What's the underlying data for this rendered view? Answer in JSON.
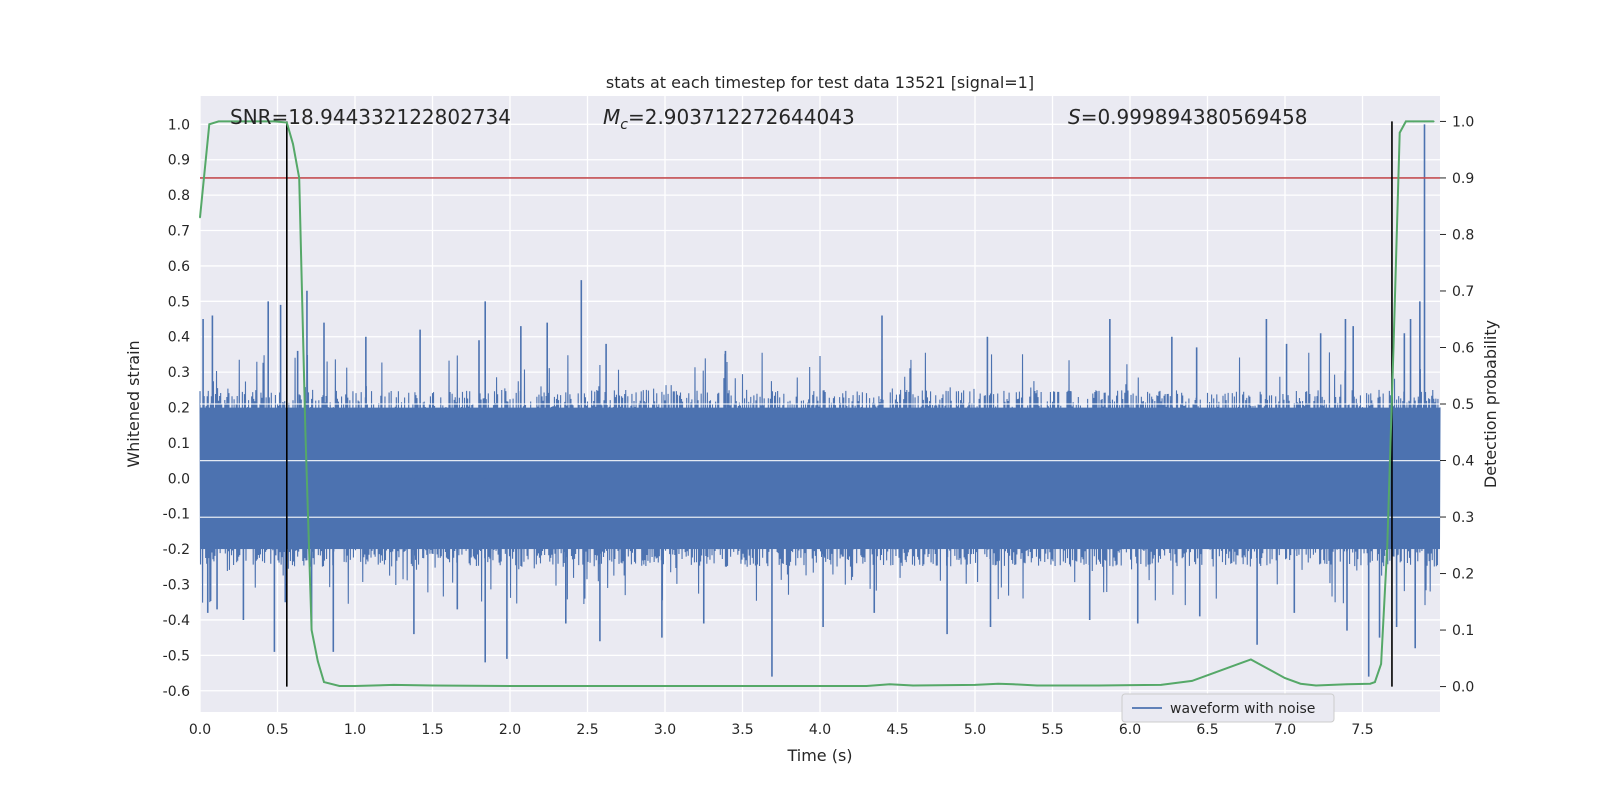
{
  "chart_data": {
    "type": "line",
    "title": "stats at each timestep for test data 13521 [signal=1]",
    "xlabel": "Time (s)",
    "ylabel": "Whitened strain",
    "y2label": "Detection probability",
    "xlim": [
      0.0,
      8.0
    ],
    "ylim": [
      -0.66,
      1.08
    ],
    "y2lim": [
      -0.045,
      1.045
    ],
    "x_ticks": [
      "0.0",
      "0.5",
      "1.0",
      "1.5",
      "2.0",
      "2.5",
      "3.0",
      "3.5",
      "4.0",
      "4.5",
      "5.0",
      "5.5",
      "6.0",
      "6.5",
      "7.0",
      "7.5"
    ],
    "y_ticks": [
      "-0.6",
      "-0.5",
      "-0.4",
      "-0.3",
      "-0.2",
      "-0.1",
      "0.0",
      "0.1",
      "0.2",
      "0.3",
      "0.4",
      "0.5",
      "0.6",
      "0.7",
      "0.8",
      "0.9",
      "1.0"
    ],
    "y2_ticks": [
      "0.0",
      "0.1",
      "0.2",
      "0.3",
      "0.4",
      "0.5",
      "0.6",
      "0.7",
      "0.8",
      "0.9",
      "1.0"
    ],
    "grid": true,
    "legend": {
      "placement": "lower-right",
      "entries": [
        "waveform with noise"
      ]
    },
    "annotations": {
      "snr": "SNR=18.944332122802734",
      "mc_symbol": "M",
      "mc_subscript": "c",
      "mc_value": "=2.903712272644043",
      "s_symbol": "S",
      "s_value": "=0.999894380569458"
    },
    "threshold_y2": 0.9,
    "vertical_markers_x": [
      0.56,
      7.69
    ],
    "series": [
      {
        "name": "waveform with noise",
        "color": "#4c72b0",
        "axis": "left",
        "duration": 8.0,
        "core_amplitude": 0.2,
        "spikes": [
          {
            "x": 0.02,
            "y": 0.45
          },
          {
            "x": 0.08,
            "y": 0.46
          },
          {
            "x": 0.44,
            "y": 0.5
          },
          {
            "x": 0.52,
            "y": 0.49
          },
          {
            "x": 0.63,
            "y": 0.36
          },
          {
            "x": 0.69,
            "y": 0.53
          },
          {
            "x": 0.8,
            "y": 0.44
          },
          {
            "x": 1.07,
            "y": 0.4
          },
          {
            "x": 1.42,
            "y": 0.42
          },
          {
            "x": 1.8,
            "y": 0.39
          },
          {
            "x": 1.84,
            "y": 0.5
          },
          {
            "x": 2.07,
            "y": 0.43
          },
          {
            "x": 2.24,
            "y": 0.44
          },
          {
            "x": 2.46,
            "y": 0.56
          },
          {
            "x": 2.62,
            "y": 0.38
          },
          {
            "x": 3.39,
            "y": 0.36
          },
          {
            "x": 4.4,
            "y": 0.46
          },
          {
            "x": 5.08,
            "y": 0.4
          },
          {
            "x": 5.87,
            "y": 0.45
          },
          {
            "x": 6.27,
            "y": 0.4
          },
          {
            "x": 6.43,
            "y": 0.37
          },
          {
            "x": 6.88,
            "y": 0.45
          },
          {
            "x": 7.01,
            "y": 0.38
          },
          {
            "x": 7.23,
            "y": 0.41
          },
          {
            "x": 7.39,
            "y": 0.45
          },
          {
            "x": 7.44,
            "y": 0.43
          },
          {
            "x": 7.77,
            "y": 0.41
          },
          {
            "x": 7.81,
            "y": 0.45
          },
          {
            "x": 7.87,
            "y": 0.5
          },
          {
            "x": 7.9,
            "y": 1.0
          },
          {
            "x": 0.05,
            "y": -0.38
          },
          {
            "x": 0.11,
            "y": -0.37
          },
          {
            "x": 0.28,
            "y": -0.4
          },
          {
            "x": 0.48,
            "y": -0.49
          },
          {
            "x": 0.55,
            "y": -0.35
          },
          {
            "x": 0.72,
            "y": -0.42
          },
          {
            "x": 0.86,
            "y": -0.49
          },
          {
            "x": 1.38,
            "y": -0.44
          },
          {
            "x": 1.66,
            "y": -0.37
          },
          {
            "x": 1.84,
            "y": -0.52
          },
          {
            "x": 1.98,
            "y": -0.51
          },
          {
            "x": 2.36,
            "y": -0.41
          },
          {
            "x": 2.58,
            "y": -0.46
          },
          {
            "x": 2.98,
            "y": -0.45
          },
          {
            "x": 3.25,
            "y": -0.41
          },
          {
            "x": 3.69,
            "y": -0.56
          },
          {
            "x": 4.02,
            "y": -0.42
          },
          {
            "x": 4.35,
            "y": -0.38
          },
          {
            "x": 4.82,
            "y": -0.44
          },
          {
            "x": 5.1,
            "y": -0.42
          },
          {
            "x": 5.74,
            "y": -0.4
          },
          {
            "x": 6.05,
            "y": -0.41
          },
          {
            "x": 6.45,
            "y": -0.39
          },
          {
            "x": 6.82,
            "y": -0.47
          },
          {
            "x": 7.06,
            "y": -0.38
          },
          {
            "x": 7.4,
            "y": -0.43
          },
          {
            "x": 7.54,
            "y": -0.56
          },
          {
            "x": 7.61,
            "y": -0.45
          },
          {
            "x": 7.72,
            "y": -0.42
          },
          {
            "x": 7.84,
            "y": -0.48
          }
        ]
      },
      {
        "name": "",
        "color": "#55a868",
        "axis": "right",
        "x": [
          0.0,
          0.06,
          0.12,
          0.2,
          0.3,
          0.4,
          0.48,
          0.56,
          0.6,
          0.64,
          0.68,
          0.72,
          0.76,
          0.8,
          0.9,
          1.0,
          1.25,
          1.5,
          2.0,
          2.5,
          3.0,
          3.5,
          4.0,
          4.3,
          4.45,
          4.6,
          5.0,
          5.15,
          5.25,
          5.4,
          5.8,
          6.2,
          6.4,
          6.55,
          6.7,
          6.78,
          6.82,
          6.9,
          7.0,
          7.1,
          7.2,
          7.4,
          7.55,
          7.58,
          7.62,
          7.66,
          7.7,
          7.74,
          7.78,
          7.83,
          7.9,
          7.96
        ],
        "y": [
          0.83,
          0.995,
          1.0,
          1.0,
          1.0,
          1.0,
          1.0,
          0.998,
          0.96,
          0.9,
          0.45,
          0.1,
          0.045,
          0.008,
          0.001,
          0.001,
          0.003,
          0.002,
          0.001,
          0.001,
          0.001,
          0.001,
          0.001,
          0.001,
          0.004,
          0.002,
          0.003,
          0.005,
          0.004,
          0.002,
          0.002,
          0.003,
          0.01,
          0.025,
          0.04,
          0.048,
          0.042,
          0.03,
          0.015,
          0.005,
          0.002,
          0.004,
          0.005,
          0.008,
          0.04,
          0.25,
          0.6,
          0.98,
          1.0,
          1.0,
          1.0,
          1.0
        ]
      }
    ]
  }
}
